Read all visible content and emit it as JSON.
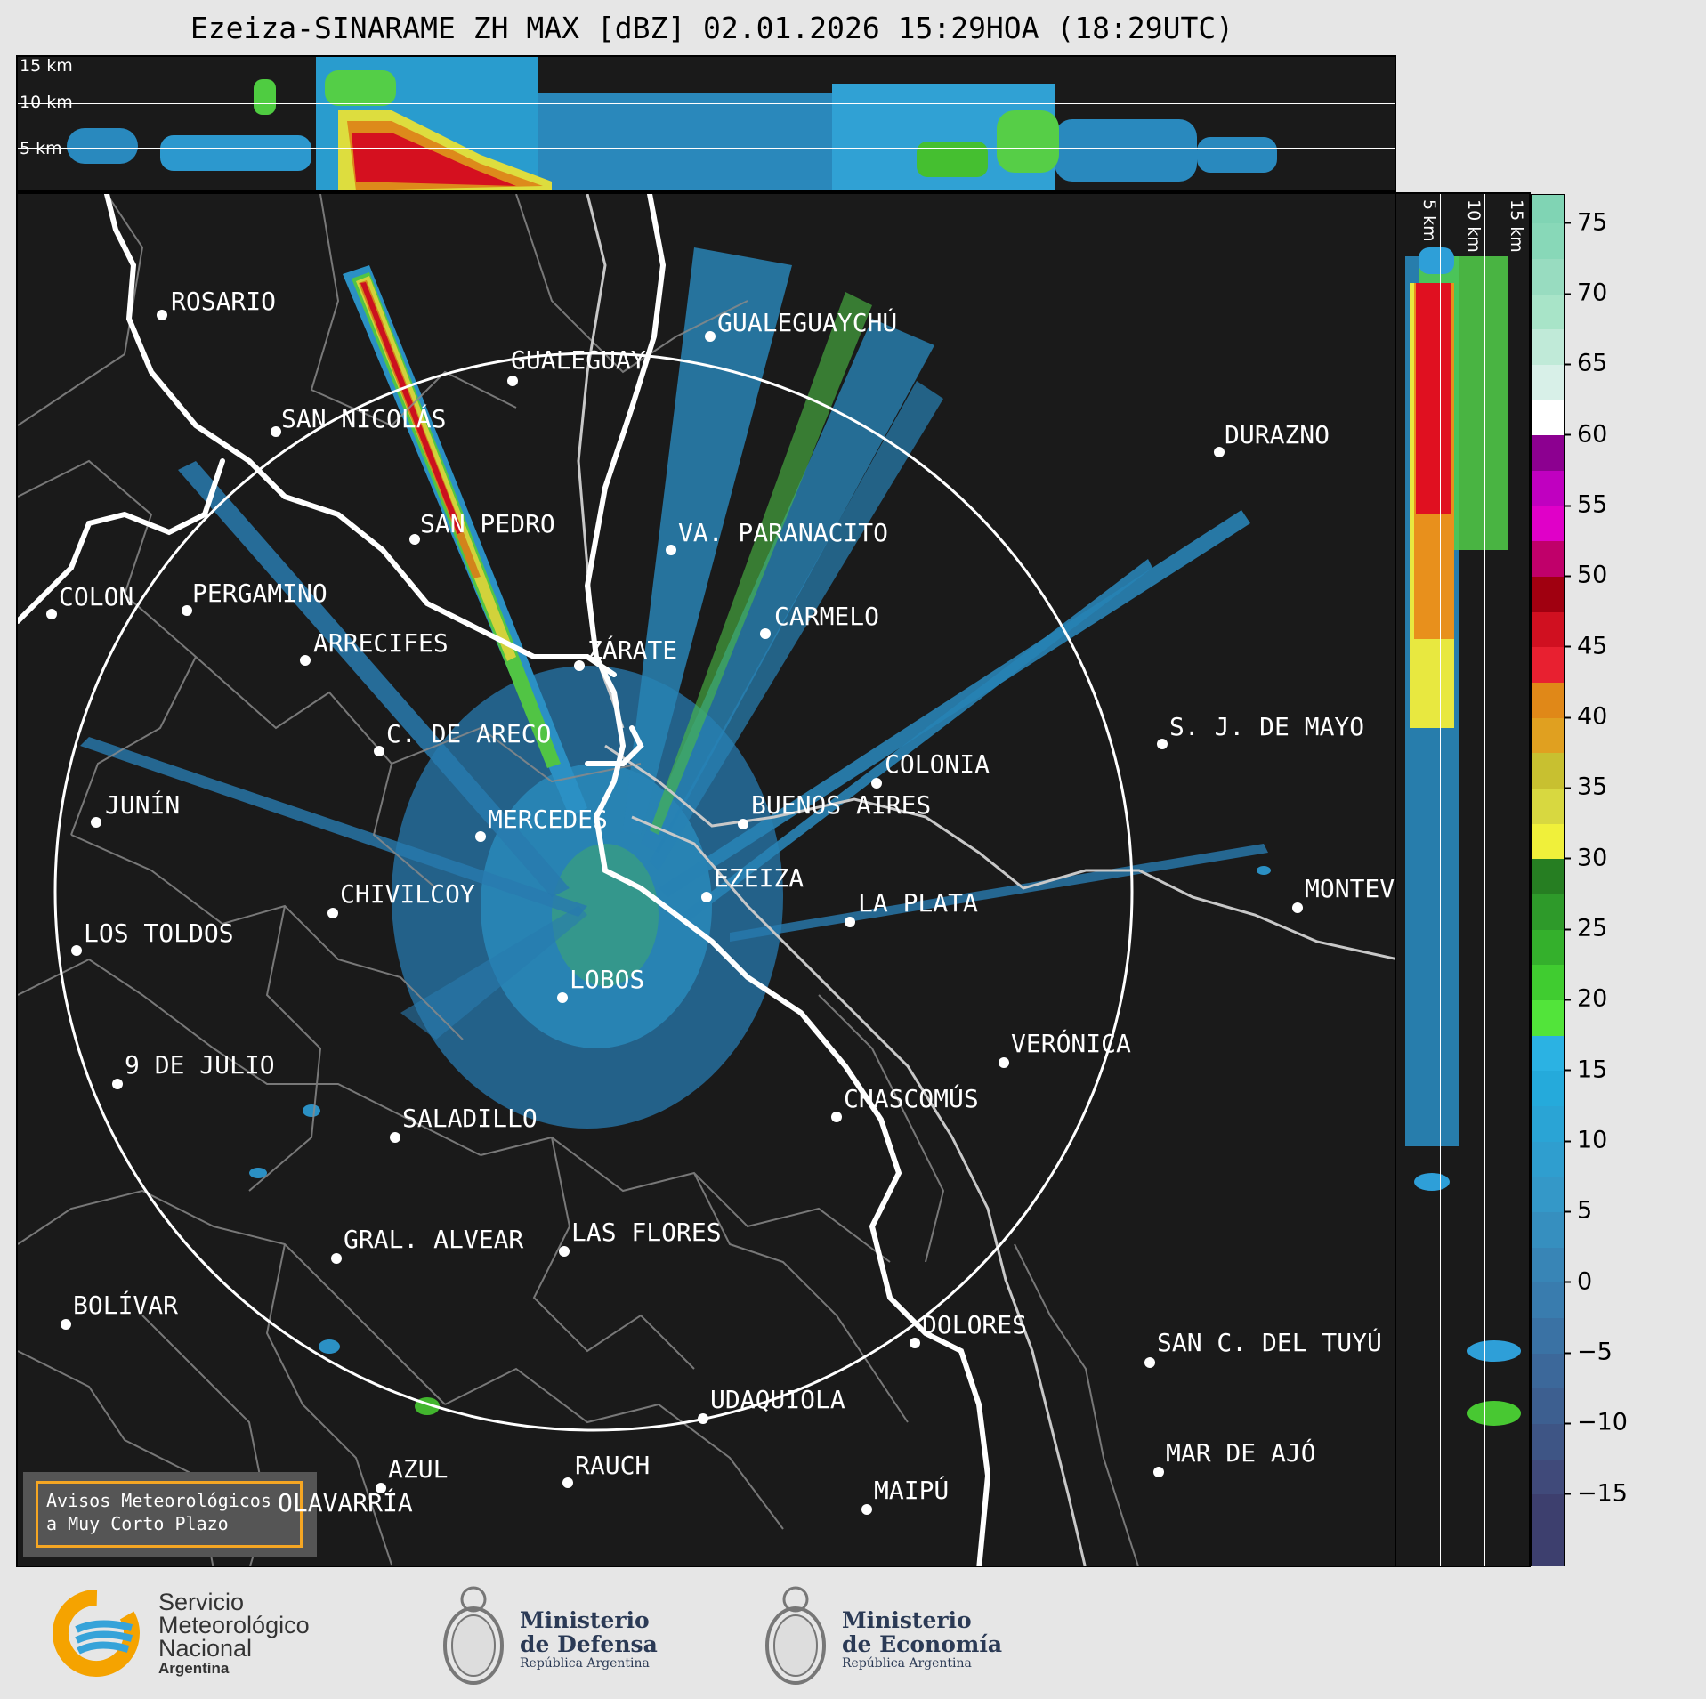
{
  "title": "Ezeiza-SINARAME ZH MAX [dBZ] 02.01.2026 15:29HOA (18:29UTC)",
  "top_panel": {
    "altitude_labels": [
      "15 km",
      "10 km",
      "5 km"
    ]
  },
  "side_panel": {
    "altitude_labels": [
      "5 km",
      "10 km",
      "15 km"
    ]
  },
  "colorbar": {
    "ticks": [
      "75",
      "70",
      "65",
      "60",
      "55",
      "50",
      "45",
      "40",
      "35",
      "30",
      "25",
      "20",
      "15",
      "10",
      "5",
      "0",
      "−5",
      "−10",
      "−15"
    ],
    "range": [
      -20,
      77
    ]
  },
  "map": {
    "cities": [
      {
        "name": "ROSARIO"
      },
      {
        "name": "GUALEGUAYCHÚ"
      },
      {
        "name": "GUALEGUAY"
      },
      {
        "name": "SAN NICOLÁS"
      },
      {
        "name": "DURAZNO"
      },
      {
        "name": "SAN PEDRO"
      },
      {
        "name": "VA. PARANACITO"
      },
      {
        "name": "COLON"
      },
      {
        "name": "PERGAMINO"
      },
      {
        "name": "CARMELO"
      },
      {
        "name": "ARRECIFES"
      },
      {
        "name": "ZÁRATE"
      },
      {
        "name": "S. J. DE MAYO"
      },
      {
        "name": "C. DE ARECO"
      },
      {
        "name": "COLONIA"
      },
      {
        "name": "JUNÍN"
      },
      {
        "name": "BUENOS AIRES"
      },
      {
        "name": "MERCEDES"
      },
      {
        "name": "EZEIZA"
      },
      {
        "name": "MONTEV"
      },
      {
        "name": "CHIVILCOY"
      },
      {
        "name": "LA PLATA"
      },
      {
        "name": "LOS TOLDOS"
      },
      {
        "name": "LOBOS"
      },
      {
        "name": "VERÓNICA"
      },
      {
        "name": "9 DE JULIO"
      },
      {
        "name": "CHASCOMÚS"
      },
      {
        "name": "SALADILLO"
      },
      {
        "name": "GRAL. ALVEAR"
      },
      {
        "name": "LAS FLORES"
      },
      {
        "name": "BOLÍVAR"
      },
      {
        "name": "DOLORES"
      },
      {
        "name": "SAN C. DEL TUYÚ"
      },
      {
        "name": "UDAQUIOLA"
      },
      {
        "name": "AZUL"
      },
      {
        "name": "RAUCH"
      },
      {
        "name": "MAR DE AJÓ"
      },
      {
        "name": "MAIPÚ"
      },
      {
        "name": "OLAVARRÍA"
      }
    ],
    "warning_box": [
      "Avisos Meteorológicos",
      "a Muy Corto Plazo"
    ]
  },
  "footer": {
    "smn": {
      "line1": "Servicio",
      "line2": "Meteorológico",
      "line3": "Nacional",
      "sub": "Argentina"
    },
    "defensa": {
      "line1": "Ministerio",
      "line2": "de Defensa",
      "sub": "República Argentina"
    },
    "economia": {
      "line1": "Ministerio",
      "line2": "de Economía",
      "sub": "República Argentina"
    }
  },
  "colors": {
    "background": "#1a1a1a",
    "border": "#ffffff",
    "river": "#ffffff",
    "warning": "#f5a623"
  }
}
